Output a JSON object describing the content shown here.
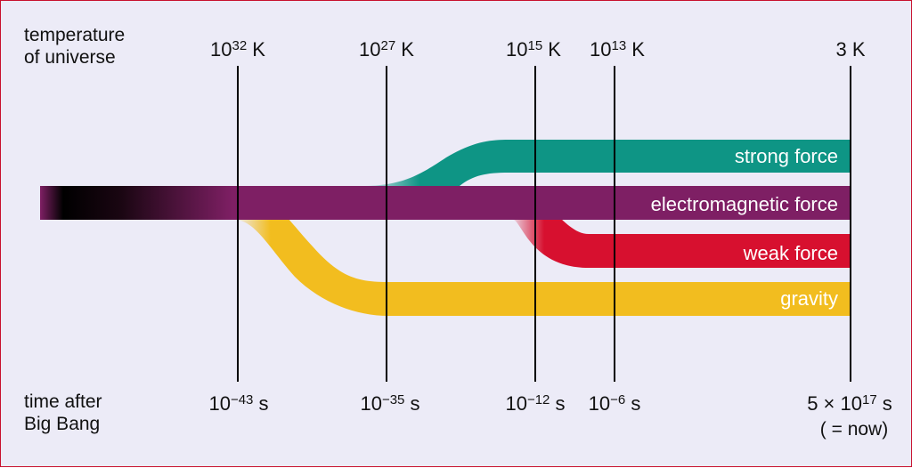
{
  "labels": {
    "temperature_line1": "temperature",
    "temperature_line2": "of universe",
    "time_line1": "time after",
    "time_line2": "Big Bang"
  },
  "temperatures": [
    {
      "base": "10",
      "exp": "32",
      "unit": "K"
    },
    {
      "base": "10",
      "exp": "27",
      "unit": "K"
    },
    {
      "base": "10",
      "exp": "15",
      "unit": "K"
    },
    {
      "base": "10",
      "exp": "13",
      "unit": "K"
    },
    {
      "base": "",
      "exp": "",
      "unit": "3 K"
    }
  ],
  "times": [
    {
      "base": "10",
      "exp": "−43",
      "unit": "s"
    },
    {
      "base": "10",
      "exp": "−35",
      "unit": "s"
    },
    {
      "base": "10",
      "exp": "−12",
      "unit": "s"
    },
    {
      "base": "10",
      "exp": "−6",
      "unit": "s"
    },
    {
      "base": "5 × 10",
      "exp": "17",
      "unit": "s"
    }
  ],
  "time_note": "( = now)",
  "forces": {
    "strong": "strong force",
    "electromagnetic": "electromagnetic force",
    "weak": "weak force",
    "gravity": "gravity"
  },
  "colors": {
    "strong": "#0e9585",
    "electromagnetic": "#7e1f64",
    "weak": "#d7102f",
    "gravity": "#f2bd1f",
    "background": "#ecebf7",
    "border": "#c8102e"
  }
}
